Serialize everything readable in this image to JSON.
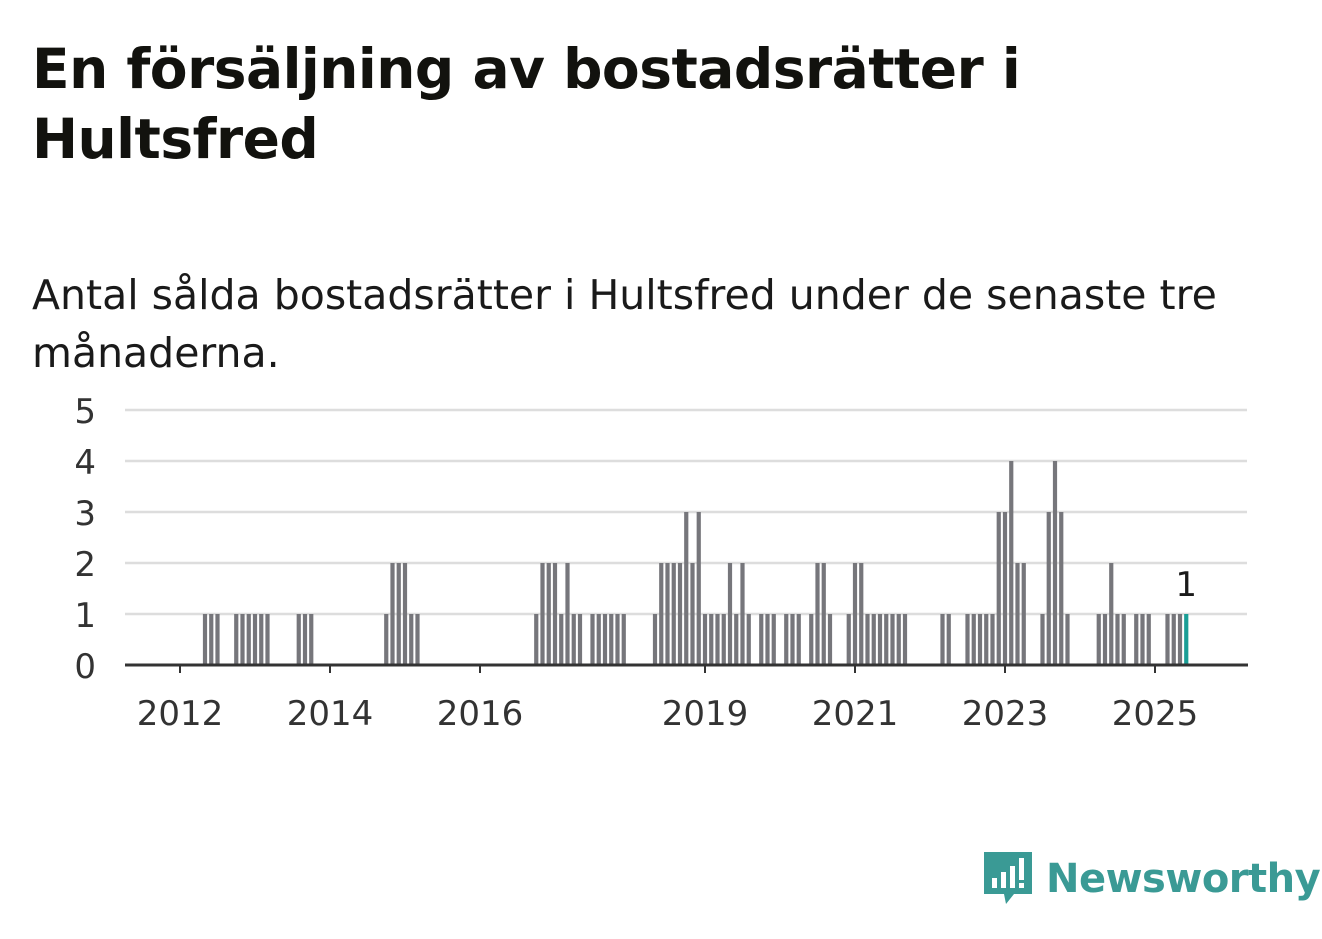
{
  "title": "En försäljning av bostadsrätter i Hultsfred",
  "subtitle": "Antal sålda bostadsrätter i Hultsfred under de senaste tre månaderna.",
  "brand": {
    "name": "Newsworthy",
    "color": "#3a9a95",
    "icon": "newsworthy-logo-icon"
  },
  "colors": {
    "bar": "#76767b",
    "highlight": "#1a9e96",
    "grid": "#dddddd",
    "axis": "#333333"
  },
  "chart_data": {
    "type": "bar",
    "x_label_format": "year",
    "x_tick_labels": [
      "2012",
      "2014",
      "2016",
      "2019",
      "2021",
      "2023",
      "2025"
    ],
    "y_ticks": [
      0,
      1,
      2,
      3,
      4,
      5
    ],
    "ylim": [
      0,
      5
    ],
    "grid": true,
    "highlight": {
      "date": "2025-06",
      "value": 1,
      "label": "1"
    },
    "x": [
      "2012-05",
      "2012-06",
      "2012-07",
      "2012-10",
      "2012-11",
      "2012-12",
      "2013-01",
      "2013-02",
      "2013-03",
      "2013-08",
      "2013-09",
      "2013-10",
      "2014-10",
      "2014-11",
      "2014-12",
      "2015-01",
      "2015-02",
      "2015-03",
      "2016-10",
      "2016-11",
      "2016-12",
      "2017-01",
      "2017-02",
      "2017-03",
      "2017-04",
      "2017-05",
      "2017-07",
      "2017-08",
      "2017-09",
      "2017-10",
      "2017-11",
      "2017-12",
      "2018-05",
      "2018-06",
      "2018-07",
      "2018-08",
      "2018-09",
      "2018-10",
      "2018-11",
      "2018-12",
      "2019-01",
      "2019-02",
      "2019-03",
      "2019-04",
      "2019-05",
      "2019-06",
      "2019-07",
      "2019-08",
      "2019-10",
      "2019-11",
      "2019-12",
      "2020-02",
      "2020-03",
      "2020-04",
      "2020-06",
      "2020-07",
      "2020-08",
      "2020-09",
      "2020-12",
      "2021-01",
      "2021-02",
      "2021-03",
      "2021-04",
      "2021-05",
      "2021-06",
      "2021-07",
      "2021-08",
      "2021-09",
      "2022-03",
      "2022-04",
      "2022-07",
      "2022-08",
      "2022-09",
      "2022-10",
      "2022-11",
      "2022-12",
      "2023-01",
      "2023-02",
      "2023-03",
      "2023-04",
      "2023-07",
      "2023-08",
      "2023-09",
      "2023-10",
      "2023-11",
      "2024-04",
      "2024-05",
      "2024-06",
      "2024-07",
      "2024-08",
      "2024-10",
      "2024-11",
      "2024-12",
      "2025-03",
      "2025-04",
      "2025-05",
      "2025-06"
    ],
    "values": [
      1,
      1,
      1,
      1,
      1,
      1,
      1,
      1,
      1,
      1,
      1,
      1,
      1,
      2,
      2,
      2,
      1,
      1,
      1,
      2,
      2,
      2,
      1,
      2,
      1,
      1,
      1,
      1,
      1,
      1,
      1,
      1,
      1,
      2,
      2,
      2,
      2,
      3,
      2,
      3,
      1,
      1,
      1,
      1,
      2,
      1,
      2,
      1,
      1,
      1,
      1,
      1,
      1,
      1,
      1,
      2,
      2,
      1,
      1,
      2,
      2,
      1,
      1,
      1,
      1,
      1,
      1,
      1,
      1,
      1,
      1,
      1,
      1,
      1,
      1,
      3,
      3,
      4,
      2,
      2,
      1,
      3,
      4,
      3,
      1,
      1,
      1,
      2,
      1,
      1,
      1,
      1,
      1,
      1,
      1,
      1,
      1
    ]
  }
}
